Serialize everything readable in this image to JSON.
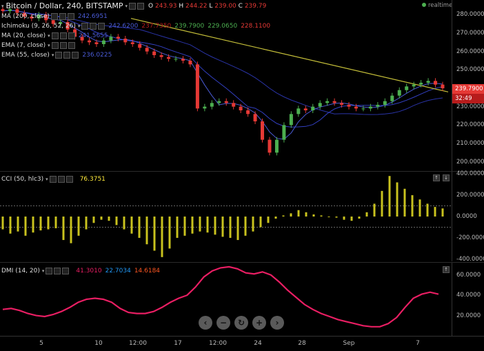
{
  "header": {
    "symbol": "Bitcoin / Dollar, 240, BITSTAMP",
    "open_label": "O",
    "open": "243.93",
    "high_label": "H",
    "high": "244.22",
    "low_label": "L",
    "low": "239.00",
    "close_label": "C",
    "close": "239.79",
    "realtime": "realtime",
    "colors": {
      "open": "#e53935",
      "realtime_dot": "#4caf50"
    }
  },
  "indicators": [
    {
      "label": "MA (200, close)",
      "values": [
        "242.6951"
      ],
      "colors": [
        "#4a5bd6"
      ]
    },
    {
      "label": "Ichimoku (9, 26, 52, 26)",
      "values": [
        "242.6200",
        "237.7350",
        "239.7900",
        "229.0650",
        "228.1100"
      ],
      "colors": [
        "#4a5bd6",
        "#b71c1c",
        "#4caf50",
        "#4caf50",
        "#e53935"
      ]
    },
    {
      "label": "MA (20, close)",
      "values": [
        "241.5655"
      ],
      "colors": [
        "#4a5bd6"
      ]
    },
    {
      "label": "EMA (7, close)",
      "values": [
        ""
      ],
      "colors": [
        "#4a5bd6"
      ]
    },
    {
      "label": "EMA (55, close)",
      "values": [
        "236.0225"
      ],
      "colors": [
        "#4a5bd6"
      ]
    }
  ],
  "price_axis": {
    "ticks": [
      "280.0000",
      "270.0000",
      "260.0000",
      "250.0000",
      "240.0000",
      "230.0000",
      "220.0000",
      "210.0000",
      "200.0000"
    ],
    "last_price": "239.7900",
    "countdown": "32:49"
  },
  "cci": {
    "label": "CCI (50, hlc3)",
    "value": "76.3751",
    "value_color": "#ffeb3b",
    "ticks": [
      "400.0000",
      "200.0000",
      "0.0000",
      "-200.0000",
      "-400.0000"
    ],
    "band_upper": 100,
    "band_lower": -100
  },
  "dmi": {
    "label": "DMI (14, 20)",
    "values": [
      "41.3010",
      "22.7034",
      "14.6184"
    ],
    "colors": [
      "#e91e63",
      "#2196f3",
      "#ff5722"
    ],
    "ticks": [
      "60.0000",
      "40.0000",
      "20.0000"
    ]
  },
  "time_axis": [
    "5",
    "10",
    "12:00",
    "17",
    "12:00",
    "24",
    "28",
    "Sep",
    "7"
  ],
  "nav_buttons": [
    "‹",
    "−",
    "↻",
    "+",
    "›"
  ],
  "chart_data": [
    {
      "type": "candlestick",
      "title": "Bitcoin / Dollar, 240, BITSTAMP",
      "ylim": [
        195,
        288
      ],
      "series": [
        {
          "name": "Price",
          "values": [
            282,
            283,
            281,
            279,
            278,
            280,
            277,
            275,
            276,
            272,
            268,
            266,
            265,
            264,
            266,
            268,
            267,
            265,
            264,
            262,
            260,
            258,
            257,
            256,
            256,
            255,
            253,
            229,
            230,
            232,
            233,
            232,
            230,
            228,
            226,
            222,
            212,
            205,
            212,
            220,
            226,
            229,
            228,
            230,
            232,
            233,
            232,
            231,
            230,
            229,
            229,
            230,
            231,
            233,
            236,
            239,
            241,
            242,
            243,
            244,
            242,
            240
          ]
        }
      ]
    },
    {
      "type": "bar",
      "title": "CCI (50, hlc3)",
      "ylim": [
        -420,
        420
      ],
      "values": [
        -120,
        -160,
        -140,
        -180,
        -150,
        -130,
        -120,
        -110,
        -220,
        -250,
        -180,
        -120,
        -60,
        -30,
        -40,
        -80,
        -120,
        -160,
        -200,
        -260,
        -320,
        -380,
        -300,
        -200,
        -180,
        -160,
        -140,
        -150,
        -170,
        -190,
        -200,
        -220,
        -180,
        -140,
        -100,
        -60,
        -20,
        10,
        30,
        60,
        40,
        20,
        10,
        0,
        -10,
        -30,
        -40,
        -20,
        40,
        120,
        240,
        380,
        320,
        260,
        200,
        160,
        120,
        90,
        76
      ]
    },
    {
      "type": "line",
      "title": "DMI (14, 20)",
      "ylim": [
        0,
        72
      ],
      "series": [
        {
          "name": "DMI",
          "values": [
            26,
            27,
            25,
            22,
            20,
            19,
            21,
            24,
            28,
            33,
            36,
            37,
            36,
            33,
            27,
            23,
            22,
            22,
            24,
            28,
            33,
            37,
            40,
            48,
            58,
            64,
            67,
            68,
            66,
            62,
            61,
            63,
            60,
            53,
            45,
            38,
            31,
            26,
            22,
            19,
            16,
            14,
            12,
            10,
            9,
            9,
            12,
            18,
            28,
            37,
            41,
            43,
            41
          ]
        }
      ]
    }
  ]
}
